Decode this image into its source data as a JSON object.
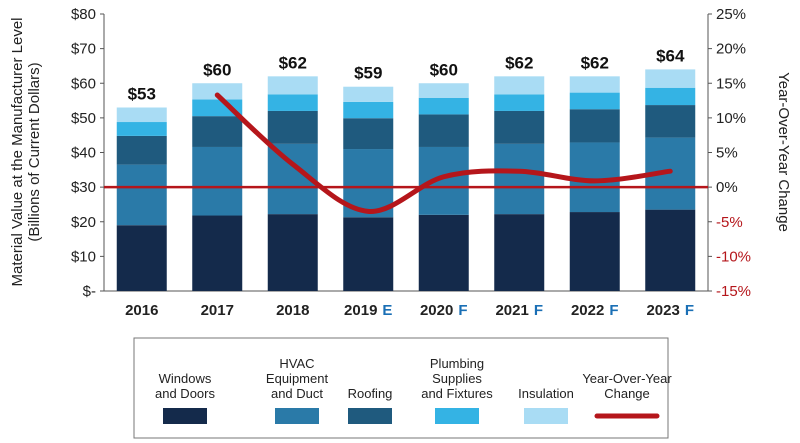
{
  "chart_data": {
    "type": "bar",
    "stacked": true,
    "categories": [
      "2016",
      "2017",
      "2018",
      "2019",
      "2020",
      "2021",
      "2022",
      "2023"
    ],
    "category_suffixes": [
      "",
      "",
      "",
      "E",
      "F",
      "F",
      "F",
      "F"
    ],
    "series": [
      {
        "name": "Windows and Doors",
        "lines": [
          "Windows",
          "and Doors"
        ],
        "color": "#142a4b",
        "values": [
          19,
          21.8,
          22.2,
          21.3,
          22,
          22.2,
          22.8,
          23.5
        ]
      },
      {
        "name": "HVAC Equipment and Duct",
        "lines": [
          "HVAC",
          "Equipment",
          "and Duct"
        ],
        "color": "#2a7aa8",
        "values": [
          17.5,
          19.8,
          20.3,
          19.7,
          19.6,
          20.3,
          20.1,
          20.8
        ]
      },
      {
        "name": "Roofing",
        "lines": [
          "Roofing"
        ],
        "color": "#1f5a7e",
        "values": [
          8.3,
          8.9,
          9.5,
          8.9,
          9.4,
          9.5,
          9.6,
          9.4
        ]
      },
      {
        "name": "Plumbing Supplies and Fixtures",
        "lines": [
          "Plumbing",
          "Supplies",
          "and Fixtures"
        ],
        "color": "#34b3e4",
        "values": [
          4,
          4.8,
          4.8,
          4.7,
          4.8,
          4.8,
          4.8,
          5.0
        ]
      },
      {
        "name": "Insulation",
        "lines": [
          "Insulation"
        ],
        "color": "#a9dcf4",
        "values": [
          4.2,
          4.7,
          5.2,
          4.4,
          4.2,
          5.2,
          4.7,
          5.3
        ]
      }
    ],
    "totals_labels": [
      "$53",
      "$60",
      "$62",
      "$59",
      "$60",
      "$62",
      "$62",
      "$64"
    ],
    "line_series": {
      "name": "Year-Over-Year Change",
      "lines": [
        "Year-Over-Year",
        "Change"
      ],
      "axis": "right",
      "color": "#b5161b",
      "values": [
        null,
        13.3,
        3.3,
        -3.5,
        1.5,
        2.3,
        0.9,
        2.3
      ]
    },
    "y_left": {
      "label_lines": [
        "Material Value at the Manufacturer Level",
        "(Billions of Current Dollars)"
      ],
      "min": 0,
      "max": 80,
      "step": 10,
      "tick_labels": [
        "$-",
        "$10",
        "$20",
        "$30",
        "$40",
        "$50",
        "$60",
        "$70",
        "$80"
      ]
    },
    "y_right": {
      "label": "Year-Over-Year Change",
      "min": -15,
      "max": 25,
      "step": 5,
      "tick_labels": [
        "-15%",
        "-10%",
        "-5%",
        "0%",
        "5%",
        "10%",
        "15%",
        "20%",
        "25%"
      ],
      "negative_color": "#b5161b"
    },
    "zero_line_color": "#b5161b",
    "grid": false,
    "legend_position": "bottom"
  }
}
